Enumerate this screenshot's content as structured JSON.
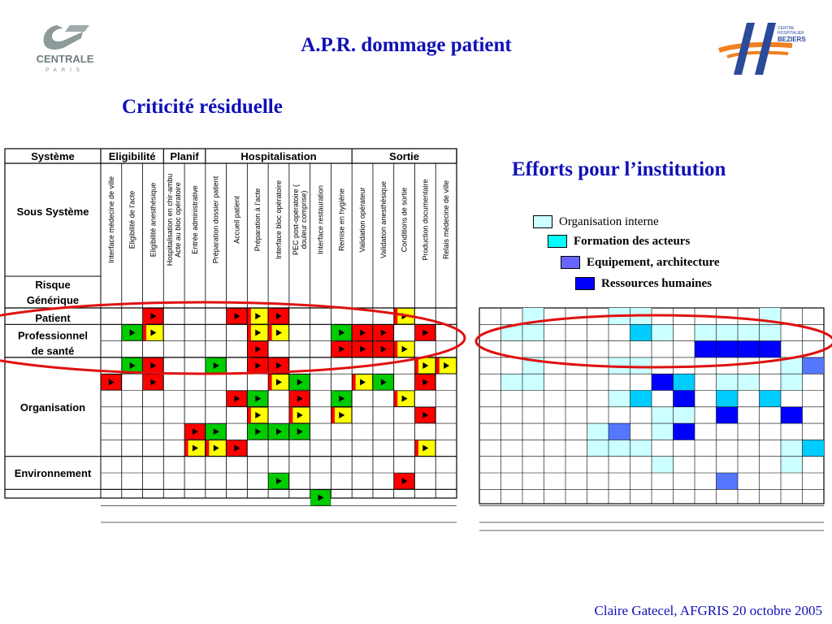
{
  "header": {
    "title": "A.P.R. dommage patient",
    "subtitle": "Criticité résiduelle",
    "efforts_title": "Efforts pour l’institution"
  },
  "logos": {
    "left": "CENTRALE PARIS",
    "right": "CENTRE HOSPITALIER BEZIERS"
  },
  "footer": {
    "text": "Claire Gatecel, AFGRIS 20 octobre 2005"
  },
  "legend": {
    "items": [
      {
        "label": "Organisation interne",
        "color": "#ccffff"
      },
      {
        "label": "Formation des acteurs",
        "color": "#00ffff"
      },
      {
        "label": "Equipement, architecture",
        "color": "#6666ff"
      },
      {
        "label": "Ressources humaines",
        "color": "#0000ff"
      }
    ]
  },
  "matrix": {
    "group_headers": [
      "Système",
      "Eligibilité",
      "Planif",
      "Hospitalisation",
      "Sortie"
    ],
    "sous_systeme_label": "Sous Système",
    "risque_label": "Risque Générique",
    "columns": [
      "Interface médecine de ville",
      "Eligibilité de l’acte",
      "Eligibilité anesthésique",
      "Hospitalisation en chir-ambu Acte au bloc opératoire",
      "Entrée administrative",
      "Préparation dossier patient",
      "Accueil patient",
      "Préparation à l’acte",
      "Interface bloc opératoire",
      "PEC post-opératoire ( douleur comprise)",
      "Interface restauration",
      "Remise en hygiène",
      "Validation opérateur",
      "Validation anesthésique",
      "Conditions de sortie",
      "Production documentaire",
      "Relais médecine de ville"
    ],
    "row_groups": [
      "Patient",
      "Professionnel de santé",
      "Organisation",
      "Environnement"
    ],
    "rows": [
      {
        "cells": [
          ".",
          ".",
          "R",
          ".",
          ".",
          ".",
          "R",
          "Y",
          "R",
          ".",
          ".",
          ".",
          ".",
          ".",
          "Y",
          ".",
          "."
        ]
      },
      {
        "cells": [
          ".",
          "G",
          "Y",
          ".",
          ".",
          ".",
          ".",
          "Y",
          "Y",
          ".",
          ".",
          "G",
          "R",
          "R",
          ".",
          "R",
          "."
        ]
      },
      {
        "cells": [
          ".",
          ".",
          ".",
          ".",
          ".",
          ".",
          ".",
          "R",
          ".",
          ".",
          ".",
          "R",
          "R",
          "R",
          "Y",
          ".",
          "."
        ]
      },
      {
        "cells": [
          ".",
          "G",
          "R",
          ".",
          ".",
          "G",
          ".",
          "R",
          "R",
          ".",
          ".",
          ".",
          ".",
          ".",
          ".",
          "Y",
          "Y"
        ]
      },
      {
        "cells": [
          "R",
          ".",
          "R",
          ".",
          ".",
          ".",
          ".",
          ".",
          "Y",
          "G",
          ".",
          ".",
          "Y",
          "G",
          ".",
          "R",
          "."
        ]
      },
      {
        "cells": [
          ".",
          ".",
          ".",
          ".",
          ".",
          ".",
          "R",
          "G",
          ".",
          "R",
          ".",
          "G",
          ".",
          ".",
          "Y",
          ".",
          "."
        ]
      },
      {
        "cells": [
          ".",
          ".",
          ".",
          ".",
          ".",
          ".",
          ".",
          "Y",
          ".",
          "Y",
          ".",
          "Y",
          ".",
          ".",
          ".",
          "R",
          "."
        ]
      },
      {
        "cells": [
          ".",
          ".",
          ".",
          ".",
          "R",
          "G",
          ".",
          "G",
          "G",
          "G",
          ".",
          ".",
          ".",
          ".",
          ".",
          ".",
          "."
        ]
      },
      {
        "cells": [
          ".",
          ".",
          ".",
          ".",
          "Y",
          "Y",
          "R",
          ".",
          ".",
          ".",
          ".",
          ".",
          ".",
          ".",
          ".",
          "Y",
          "."
        ]
      },
      {
        "cells": [
          ".",
          ".",
          ".",
          ".",
          ".",
          ".",
          ".",
          ".",
          ".",
          ".",
          ".",
          ".",
          ".",
          ".",
          ".",
          ".",
          "."
        ]
      },
      {
        "cells": [
          ".",
          ".",
          ".",
          ".",
          ".",
          ".",
          ".",
          ".",
          "G",
          ".",
          ".",
          ".",
          ".",
          ".",
          "R",
          ".",
          "."
        ]
      },
      {
        "cells": [
          ".",
          ".",
          ".",
          ".",
          ".",
          ".",
          ".",
          ".",
          ".",
          ".",
          "G",
          ".",
          ".",
          ".",
          ".",
          ".",
          "."
        ]
      },
      {
        "cells": [
          ".",
          ".",
          ".",
          ".",
          ".",
          ".",
          ".",
          ".",
          ".",
          ".",
          ".",
          ".",
          ".",
          ".",
          ".",
          ".",
          "."
        ]
      }
    ],
    "colors": {
      "R": "#ff0000",
      "Y": "#ffff00",
      "G": "#00cc00"
    }
  },
  "efforts_grid": {
    "colors": {
      "O": "#ccffff",
      "F": "#00ccff",
      "E": "#5577ff",
      "H": "#0000ff"
    },
    "rows": [
      [
        ".",
        ".",
        "O",
        ".",
        ".",
        ".",
        "O",
        "O",
        ".",
        ".",
        ".",
        ".",
        ".",
        "O",
        ".",
        "."
      ],
      [
        ".",
        "O",
        "O",
        ".",
        ".",
        ".",
        ".",
        "F",
        "O",
        ".",
        "O",
        "O",
        "O",
        "O",
        ".",
        "."
      ],
      [
        ".",
        ".",
        ".",
        ".",
        ".",
        ".",
        ".",
        ".",
        ".",
        ".",
        "H",
        "H",
        "H",
        "H",
        ".",
        "."
      ],
      [
        ".",
        ".",
        "O",
        ".",
        ".",
        ".",
        "O",
        "O",
        ".",
        ".",
        ".",
        ".",
        ".",
        ".",
        "O",
        "E"
      ],
      [
        ".",
        "O",
        "O",
        ".",
        ".",
        ".",
        ".",
        ".",
        "H",
        "F",
        ".",
        "O",
        "O",
        ".",
        "O",
        "."
      ],
      [
        ".",
        ".",
        ".",
        ".",
        ".",
        ".",
        "O",
        "F",
        ".",
        "H",
        ".",
        "F",
        ".",
        "F",
        ".",
        "."
      ],
      [
        ".",
        ".",
        ".",
        ".",
        ".",
        ".",
        ".",
        ".",
        "O",
        "O",
        ".",
        "H",
        ".",
        ".",
        "H",
        "."
      ],
      [
        ".",
        ".",
        ".",
        ".",
        ".",
        "O",
        "E",
        ".",
        "O",
        "H",
        ".",
        ".",
        ".",
        ".",
        ".",
        "."
      ],
      [
        ".",
        ".",
        ".",
        ".",
        ".",
        "O",
        "O",
        "O",
        ".",
        ".",
        ".",
        ".",
        ".",
        ".",
        "O",
        "F"
      ],
      [
        ".",
        ".",
        ".",
        ".",
        ".",
        ".",
        ".",
        ".",
        "O",
        ".",
        ".",
        ".",
        ".",
        ".",
        "O",
        "."
      ],
      [
        ".",
        ".",
        ".",
        ".",
        ".",
        ".",
        ".",
        ".",
        ".",
        ".",
        ".",
        "E",
        ".",
        ".",
        ".",
        "."
      ],
      [
        ".",
        ".",
        ".",
        ".",
        ".",
        ".",
        ".",
        ".",
        ".",
        ".",
        ".",
        ".",
        ".",
        ".",
        ".",
        "."
      ],
      [
        ".",
        ".",
        ".",
        ".",
        ".",
        ".",
        ".",
        ".",
        ".",
        ".",
        ".",
        ".",
        ".",
        ".",
        ".",
        "."
      ]
    ]
  }
}
